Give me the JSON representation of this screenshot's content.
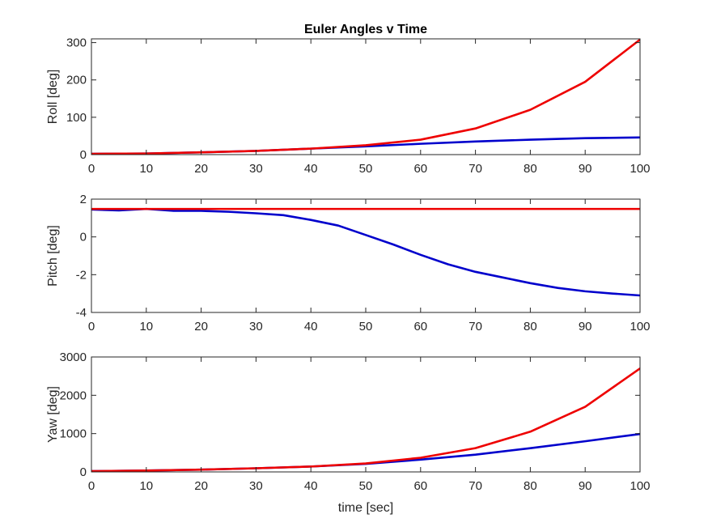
{
  "figure": {
    "title": "Euler Angles v Time",
    "xlabel": "time [sec]"
  },
  "chart_data": [
    {
      "type": "line",
      "title": "Euler Angles v Time",
      "xlabel": "",
      "ylabel": "Roll [deg]",
      "xlim": [
        0,
        100
      ],
      "ylim": [
        0,
        310
      ],
      "xticks": [
        0,
        10,
        20,
        30,
        40,
        50,
        60,
        70,
        80,
        90,
        100
      ],
      "yticks": [
        0,
        100,
        200,
        300
      ],
      "grid": false,
      "series": [
        {
          "color": "#0000cc",
          "x": [
            0,
            10,
            20,
            30,
            40,
            50,
            60,
            70,
            80,
            90,
            100
          ],
          "y": [
            2,
            3,
            6,
            10,
            16,
            22,
            29,
            35,
            40,
            44,
            46
          ]
        },
        {
          "color": "#ee0000",
          "x": [
            0,
            10,
            20,
            30,
            40,
            50,
            60,
            70,
            80,
            90,
            100
          ],
          "y": [
            2,
            3,
            6,
            10,
            16,
            25,
            40,
            70,
            120,
            195,
            308
          ]
        }
      ]
    },
    {
      "type": "line",
      "ylabel": "Pitch [deg]",
      "xlim": [
        0,
        100
      ],
      "ylim": [
        -4,
        2
      ],
      "xticks": [
        0,
        10,
        20,
        30,
        40,
        50,
        60,
        70,
        80,
        90,
        100
      ],
      "yticks": [
        -4,
        -2,
        0,
        2
      ],
      "grid": false,
      "series": [
        {
          "color": "#0000cc",
          "x": [
            0,
            5,
            10,
            15,
            20,
            25,
            30,
            35,
            40,
            45,
            50,
            55,
            60,
            65,
            70,
            75,
            80,
            85,
            90,
            95,
            100
          ],
          "y": [
            1.45,
            1.4,
            1.48,
            1.38,
            1.38,
            1.33,
            1.25,
            1.15,
            0.9,
            0.6,
            0.1,
            -0.4,
            -0.95,
            -1.45,
            -1.85,
            -2.15,
            -2.45,
            -2.7,
            -2.88,
            -3.0,
            -3.1
          ]
        },
        {
          "color": "#ee0000",
          "x": [
            0,
            100
          ],
          "y": [
            1.48,
            1.48
          ]
        }
      ]
    },
    {
      "type": "line",
      "ylabel": "Yaw [deg]",
      "xlim": [
        0,
        100
      ],
      "ylim": [
        0,
        3000
      ],
      "xticks": [
        0,
        10,
        20,
        30,
        40,
        50,
        60,
        70,
        80,
        90,
        100
      ],
      "yticks": [
        0,
        1000,
        2000,
        3000
      ],
      "grid": false,
      "series": [
        {
          "color": "#0000cc",
          "x": [
            0,
            10,
            20,
            30,
            40,
            50,
            60,
            70,
            80,
            90,
            100
          ],
          "y": [
            20,
            35,
            60,
            95,
            140,
            210,
            320,
            450,
            620,
            800,
            990
          ]
        },
        {
          "color": "#ee0000",
          "x": [
            0,
            10,
            20,
            30,
            40,
            50,
            60,
            70,
            80,
            90,
            100
          ],
          "y": [
            20,
            35,
            60,
            95,
            140,
            220,
            370,
            620,
            1050,
            1700,
            2700
          ]
        }
      ]
    }
  ]
}
